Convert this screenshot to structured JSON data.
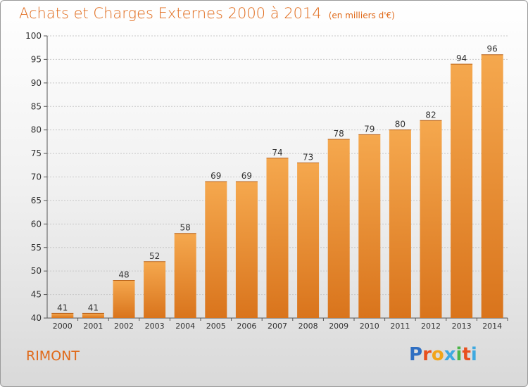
{
  "title": "Achats et Charges Externes 2000 à 2014",
  "unit": "(en milliers d'€)",
  "commune": "RIMONT",
  "logo": [
    "P",
    "r",
    "o",
    "x",
    "i",
    "t",
    "i"
  ],
  "colors": {
    "accent": "#e06a1a",
    "bar_top": "#f5a84e",
    "bar_bottom": "#d9741c",
    "logo": [
      "#2f6fc2",
      "#e8501e",
      "#f2a51b",
      "#3fa9e0",
      "#4bb548",
      "#e8501e",
      "#3fa9e0"
    ]
  },
  "chart_data": {
    "type": "bar",
    "categories": [
      "2000",
      "2001",
      "2002",
      "2003",
      "2004",
      "2005",
      "2006",
      "2007",
      "2008",
      "2009",
      "2010",
      "2011",
      "2012",
      "2013",
      "2014"
    ],
    "values": [
      41,
      41,
      48,
      52,
      58,
      69,
      69,
      74,
      73,
      78,
      79,
      80,
      82,
      94,
      96
    ],
    "ylim": [
      40,
      100
    ],
    "yticks": [
      40,
      45,
      50,
      55,
      60,
      65,
      70,
      75,
      80,
      85,
      90,
      95,
      100
    ],
    "grid": true
  }
}
